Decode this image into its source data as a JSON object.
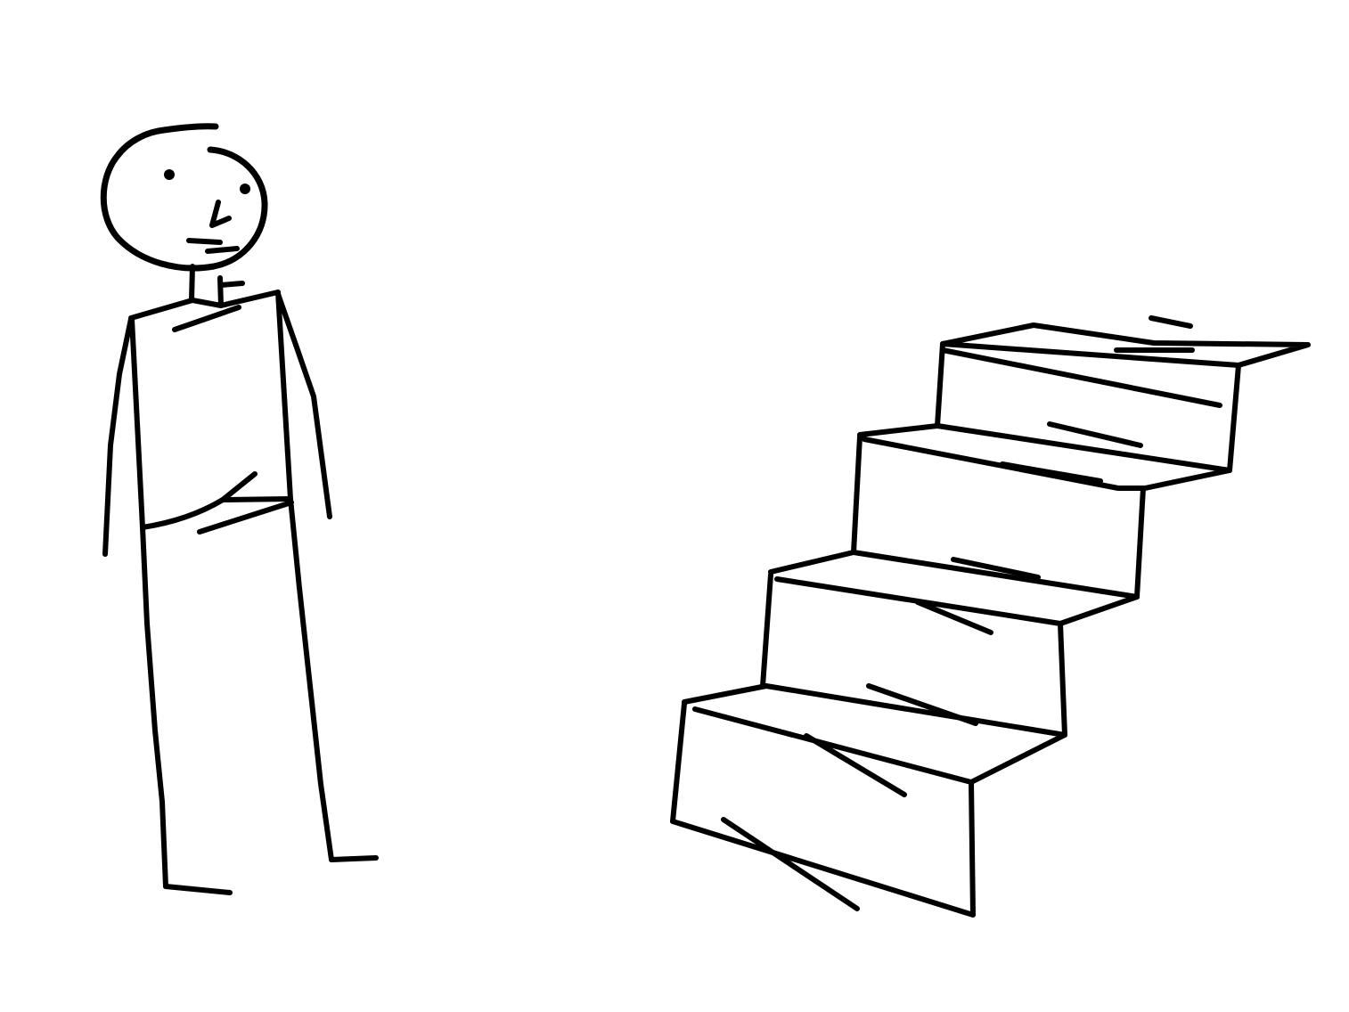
{
  "scene": {
    "background_color": "#ffffff",
    "ink_color": "#000000",
    "figure": {
      "name": "stick-figure-person",
      "parts": [
        "head",
        "eyes",
        "nose",
        "mouth",
        "neck",
        "torso",
        "arms",
        "legs",
        "feet"
      ]
    },
    "staircase": {
      "name": "staircase",
      "step_count": 4
    }
  }
}
